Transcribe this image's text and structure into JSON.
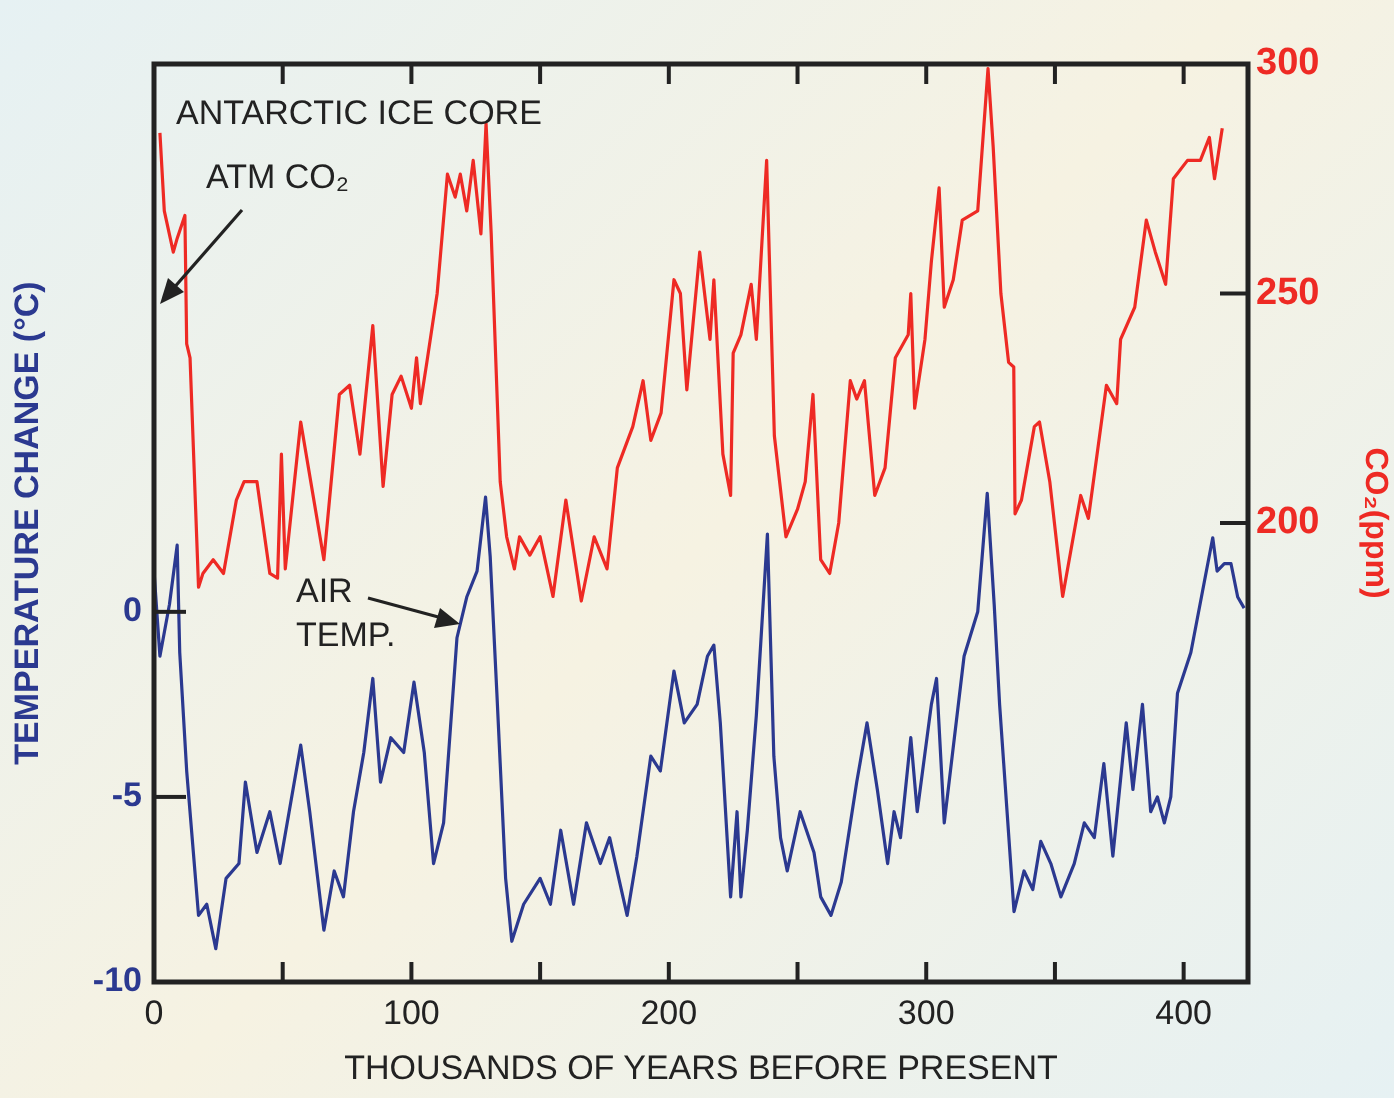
{
  "chart_data": {
    "type": "line",
    "xlabel": "THOUSANDS OF YEARS BEFORE PRESENT",
    "ylabel": "TEMPERATURE CHANGE (°C)",
    "y2label": "CO₂(ppm)",
    "annotations": [
      "ANTARCTIC ICE CORE",
      "ATM CO₂",
      "AIR TEMP."
    ],
    "xlim": [
      0,
      425
    ],
    "xticks": [
      0,
      {
        "value": 50,
        "label": null
      },
      100,
      {
        "value": 150,
        "label": null
      },
      200,
      {
        "value": 250,
        "label": null
      },
      300,
      {
        "value": 350,
        "label": null
      },
      400
    ],
    "ylim": [
      -10,
      14.8
    ],
    "yticks": [
      -10,
      -5,
      0
    ],
    "y2lim": [
      100,
      300
    ],
    "y2ticks": [
      200,
      250,
      300
    ],
    "marker": "none",
    "line_style": "solid",
    "series": [
      {
        "color": "#ee2a24",
        "axis": "y2",
        "x": [
          2.3,
          4,
          7.5,
          9,
          12,
          12.7,
          14,
          17.3,
          19,
          23,
          27,
          32,
          35,
          40,
          45,
          48,
          49.5,
          51,
          57,
          66,
          72,
          76,
          80,
          85,
          89,
          92.5,
          96,
          100,
          102,
          103.5,
          106,
          110,
          114,
          117,
          119,
          121.5,
          124,
          127,
          129,
          131,
          134.5,
          137,
          140,
          142,
          146,
          150,
          155,
          160,
          166,
          171,
          176,
          180,
          186,
          190,
          193,
          197,
          202,
          204.5,
          207,
          212,
          216,
          217.5,
          221,
          224,
          225,
          228,
          232,
          234,
          238,
          241,
          245.5,
          250,
          253,
          256,
          259,
          262.5,
          266,
          270.5,
          273,
          276,
          280,
          284,
          288,
          293,
          294,
          295.5,
          299.5,
          302,
          305,
          307,
          310.5,
          314,
          320,
          324,
          326,
          329,
          332,
          334,
          334.5,
          337,
          342,
          344,
          348,
          353,
          360,
          363,
          370,
          374,
          375.5,
          381,
          385.5,
          389,
          393,
          396,
          401.5,
          406.5,
          410,
          412,
          415
        ],
        "values": [
          285,
          268,
          259,
          262,
          267,
          239,
          236,
          186,
          189,
          192,
          189,
          205,
          209,
          209,
          189,
          188,
          215,
          190,
          222,
          192,
          228,
          230,
          215,
          243,
          208,
          228,
          232,
          225,
          236,
          226,
          235,
          250,
          276,
          271,
          276,
          268,
          279,
          263,
          287,
          263,
          209,
          197,
          190,
          197,
          193,
          197,
          184,
          205,
          183,
          197,
          190,
          212,
          221,
          231,
          218,
          224,
          253,
          250,
          229,
          259,
          240,
          253,
          215,
          206,
          237,
          241,
          252,
          240,
          279,
          219,
          197,
          203,
          209,
          228,
          192,
          189,
          200,
          231,
          227,
          231,
          206,
          212,
          236,
          241,
          250,
          225,
          240,
          257,
          273,
          247,
          253,
          266,
          268,
          299,
          282,
          250,
          235,
          234,
          202,
          205,
          221,
          222,
          209,
          184,
          206,
          201,
          230,
          226,
          240,
          247,
          266,
          259,
          252,
          275,
          279,
          279,
          284,
          275,
          286
        ]
      },
      {
        "color": "#2b3990",
        "x": [
          0,
          2.3,
          6,
          9,
          10,
          12.7,
          17.3,
          20.5,
          24,
          28,
          33,
          35.5,
          40,
          45,
          49,
          57,
          60.5,
          66,
          70,
          73.6,
          77.5,
          81.5,
          85,
          88,
          92,
          97,
          101,
          105,
          108.6,
          112.5,
          117.7,
          121.5,
          125.5,
          128.8,
          130.6,
          133.2,
          136.6,
          139,
          143.6,
          150,
          154,
          158,
          163,
          168,
          173.4,
          177,
          183.8,
          187.6,
          193,
          196.7,
          202,
          206,
          211,
          215,
          217.5,
          220,
          224,
          226.5,
          228,
          230.5,
          234,
          238.3,
          240.8,
          243.4,
          246,
          251,
          256.4,
          259,
          263,
          267,
          273,
          277,
          281,
          285,
          287.5,
          290,
          294,
          296.5,
          302,
          304,
          307,
          314.7,
          320,
          323.7,
          326.4,
          328.5,
          331.5,
          334.1,
          338,
          341.4,
          344.5,
          348.4,
          352.3,
          357.5,
          361.4,
          365.3,
          369,
          372.5,
          377.7,
          380.3,
          384,
          387.2,
          389.8,
          392.5,
          395,
          397.6,
          402.8,
          408,
          411.3,
          413,
          415.8,
          418.4,
          421,
          423.5
        ],
        "values": [
          1.1,
          -1.2,
          0.2,
          1.8,
          -1.1,
          -4.3,
          -8.2,
          -7.9,
          -9.1,
          -7.2,
          -6.8,
          -4.6,
          -6.5,
          -5.4,
          -6.8,
          -3.6,
          -5.4,
          -8.6,
          -7,
          -7.7,
          -5.4,
          -3.8,
          -1.8,
          -4.6,
          -3.4,
          -3.8,
          -1.9,
          -3.8,
          -6.8,
          -5.7,
          -0.7,
          0.4,
          1.1,
          3.1,
          1.5,
          -2.2,
          -7.2,
          -8.9,
          -7.9,
          -7.2,
          -7.9,
          -5.9,
          -7.9,
          -5.7,
          -6.8,
          -6.1,
          -8.2,
          -6.6,
          -3.9,
          -4.3,
          -1.6,
          -3,
          -2.5,
          -1.2,
          -0.9,
          -3,
          -7.7,
          -5.4,
          -7.7,
          -5.9,
          -2.8,
          2.1,
          -3.9,
          -6.1,
          -7,
          -5.4,
          -6.5,
          -7.7,
          -8.2,
          -7.3,
          -4.6,
          -3,
          -4.8,
          -6.8,
          -5.4,
          -6.1,
          -3.4,
          -5.4,
          -2.5,
          -1.8,
          -5.7,
          -1.2,
          0,
          3.2,
          0.2,
          -2.5,
          -5.5,
          -8.1,
          -7,
          -7.5,
          -6.2,
          -6.8,
          -7.7,
          -6.8,
          -5.7,
          -6.1,
          -4.1,
          -6.6,
          -3,
          -4.8,
          -2.5,
          -5.4,
          -5,
          -5.7,
          -5,
          -2.2,
          -1.1,
          0.8,
          2,
          1.1,
          1.3,
          1.3,
          0.4,
          0.1
        ]
      }
    ]
  }
}
